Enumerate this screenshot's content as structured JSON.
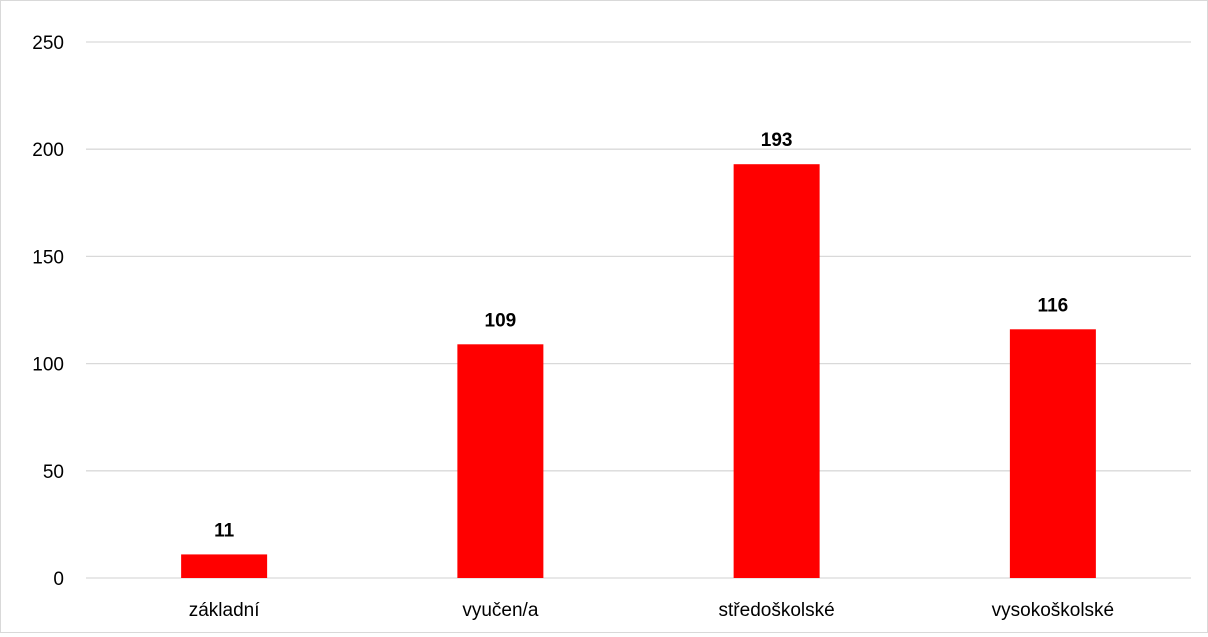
{
  "chart_data": {
    "type": "bar",
    "categories": [
      "základní",
      "vyučen/a",
      "středoškolské",
      "vysokoškolské"
    ],
    "values": [
      11,
      109,
      193,
      116
    ],
    "title": "",
    "xlabel": "",
    "ylabel": "",
    "ylim": [
      0,
      250
    ],
    "yticks": [
      0,
      50,
      100,
      150,
      200,
      250
    ],
    "grid": true,
    "legend": "none",
    "bar_color": "#ff0000",
    "grid_color": "#d9d9d9"
  }
}
